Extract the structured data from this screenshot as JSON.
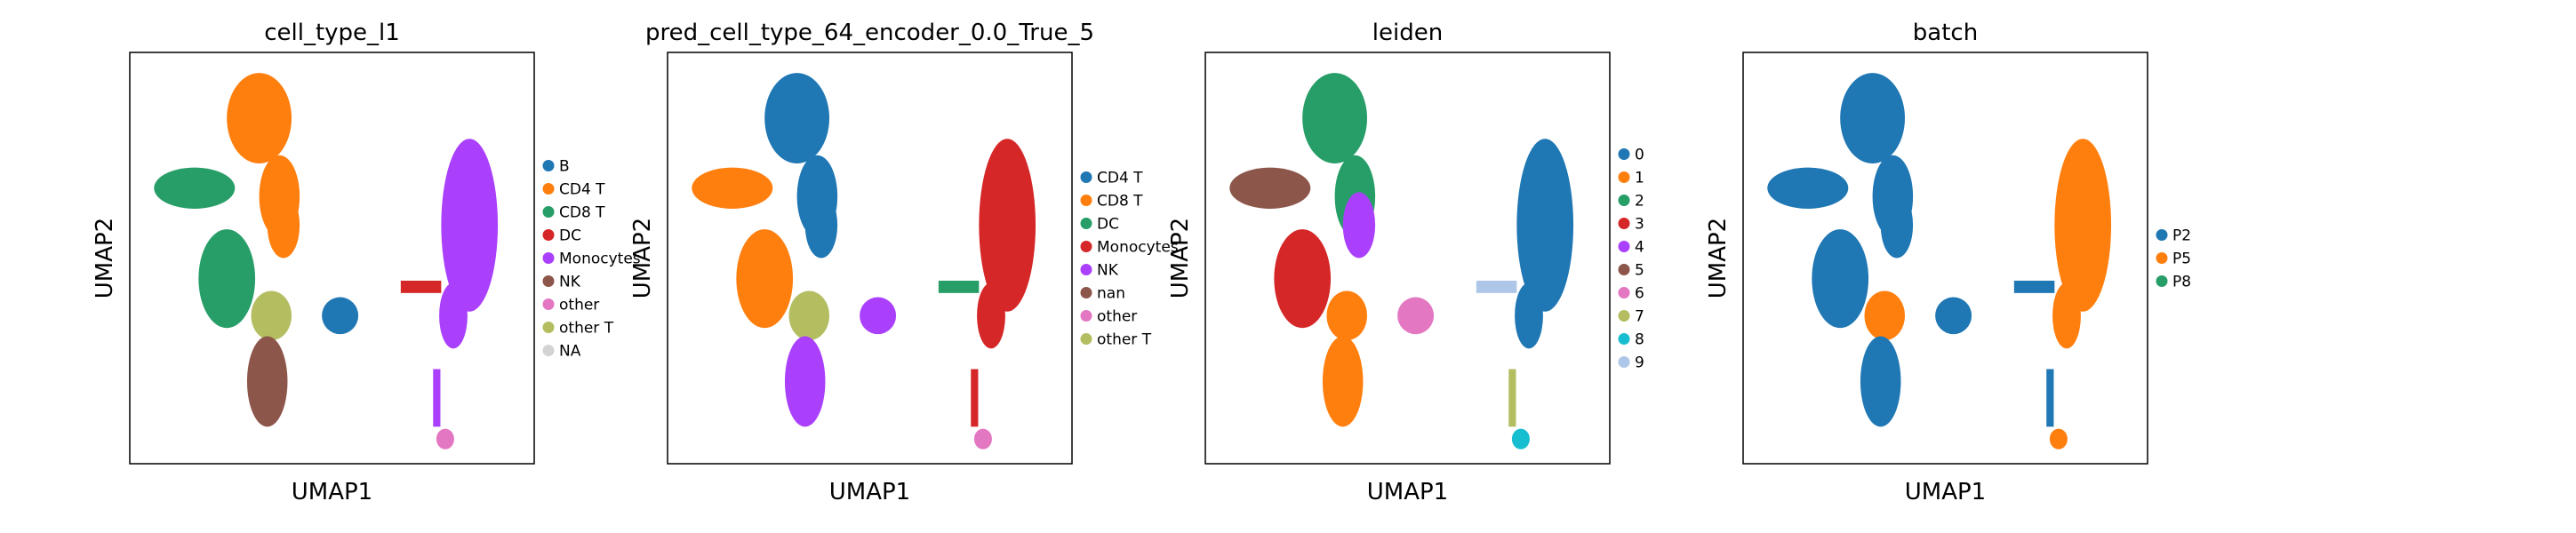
{
  "panels": [
    {
      "title": "cell_type_l1",
      "xlabel": "UMAP1",
      "ylabel": "UMAP2",
      "legend": [
        {
          "label": "B",
          "color": "#1f77b4"
        },
        {
          "label": "CD4 T",
          "color": "#ff7f0e"
        },
        {
          "label": "CD8 T",
          "color": "#279e68"
        },
        {
          "label": "DC",
          "color": "#d62728"
        },
        {
          "label": "Monocytes",
          "color": "#aa40fc"
        },
        {
          "label": "NK",
          "color": "#8c564b"
        },
        {
          "label": "other",
          "color": "#e377c2"
        },
        {
          "label": "other T",
          "color": "#b5bd61"
        },
        {
          "label": "NA",
          "color": "#d3d3d3"
        }
      ],
      "clusters": [
        {
          "region": "top-center",
          "color": "#ff7f0e"
        },
        {
          "region": "left-arm",
          "color": "#279e68"
        },
        {
          "region": "left-lower",
          "color": "#279e68"
        },
        {
          "region": "center-mid",
          "color": "#ff7f0e"
        },
        {
          "region": "center-lower",
          "color": "#b5bd61"
        },
        {
          "region": "bottom-blob",
          "color": "#8c564b"
        },
        {
          "region": "small-blob",
          "color": "#1f77b4"
        },
        {
          "region": "right-large",
          "color": "#aa40fc"
        },
        {
          "region": "right-tail",
          "color": "#aa40fc"
        },
        {
          "region": "right-stream",
          "color": "#d62728"
        },
        {
          "region": "right-bottom-dot",
          "color": "#e377c2"
        }
      ]
    },
    {
      "title": "pred_cell_type_64_encoder_0.0_True_5",
      "xlabel": "UMAP1",
      "ylabel": "UMAP2",
      "legend": [
        {
          "label": "CD4 T",
          "color": "#1f77b4"
        },
        {
          "label": "CD8 T",
          "color": "#ff7f0e"
        },
        {
          "label": "DC",
          "color": "#279e68"
        },
        {
          "label": "Monocytes",
          "color": "#d62728"
        },
        {
          "label": "NK",
          "color": "#aa40fc"
        },
        {
          "label": "nan",
          "color": "#8c564b"
        },
        {
          "label": "other",
          "color": "#e377c2"
        },
        {
          "label": "other T",
          "color": "#b5bd61"
        }
      ],
      "clusters": [
        {
          "region": "top-center",
          "color": "#1f77b4"
        },
        {
          "region": "left-arm",
          "color": "#ff7f0e"
        },
        {
          "region": "left-lower",
          "color": "#ff7f0e"
        },
        {
          "region": "center-mid",
          "color": "#1f77b4"
        },
        {
          "region": "center-lower",
          "color": "#b5bd61"
        },
        {
          "region": "bottom-blob",
          "color": "#aa40fc"
        },
        {
          "region": "small-blob",
          "color": "#aa40fc"
        },
        {
          "region": "right-large",
          "color": "#d62728"
        },
        {
          "region": "right-tail",
          "color": "#d62728"
        },
        {
          "region": "right-stream",
          "color": "#279e68"
        },
        {
          "region": "right-bottom-dot",
          "color": "#e377c2"
        }
      ]
    },
    {
      "title": "leiden",
      "xlabel": "UMAP1",
      "ylabel": "UMAP2",
      "legend": [
        {
          "label": "0",
          "color": "#1f77b4"
        },
        {
          "label": "1",
          "color": "#ff7f0e"
        },
        {
          "label": "2",
          "color": "#279e68"
        },
        {
          "label": "3",
          "color": "#d62728"
        },
        {
          "label": "4",
          "color": "#aa40fc"
        },
        {
          "label": "5",
          "color": "#8c564b"
        },
        {
          "label": "6",
          "color": "#e377c2"
        },
        {
          "label": "7",
          "color": "#b5bd61"
        },
        {
          "label": "8",
          "color": "#17becf"
        },
        {
          "label": "9",
          "color": "#aec7e8"
        }
      ],
      "clusters": [
        {
          "region": "top-center",
          "color": "#279e68"
        },
        {
          "region": "left-arm",
          "color": "#8c564b"
        },
        {
          "region": "left-lower",
          "color": "#d62728"
        },
        {
          "region": "center-mid",
          "color": "#aa40fc"
        },
        {
          "region": "center-lower",
          "color": "#ff7f0e"
        },
        {
          "region": "bottom-blob",
          "color": "#ff7f0e"
        },
        {
          "region": "small-blob",
          "color": "#e377c2"
        },
        {
          "region": "right-large",
          "color": "#1f77b4"
        },
        {
          "region": "right-tail",
          "color": "#b5bd61"
        },
        {
          "region": "right-stream",
          "color": "#aec7e8"
        },
        {
          "region": "right-bottom-dot",
          "color": "#17becf"
        }
      ]
    },
    {
      "title": "batch",
      "xlabel": "UMAP1",
      "ylabel": "UMAP2",
      "legend": [
        {
          "label": "P2",
          "color": "#1f77b4"
        },
        {
          "label": "P5",
          "color": "#ff7f0e"
        },
        {
          "label": "P8",
          "color": "#279e68"
        }
      ],
      "clusters": [
        {
          "region": "top-center",
          "color": "#1f77b4"
        },
        {
          "region": "left-arm",
          "color": "#1f77b4"
        },
        {
          "region": "left-lower",
          "color": "#1f77b4"
        },
        {
          "region": "center-mid",
          "color": "#1f77b4"
        },
        {
          "region": "center-lower",
          "color": "#ff7f0e"
        },
        {
          "region": "bottom-blob",
          "color": "#1f77b4"
        },
        {
          "region": "small-blob",
          "color": "#1f77b4"
        },
        {
          "region": "right-large",
          "color": "#ff7f0e"
        },
        {
          "region": "right-tail",
          "color": "#1f77b4"
        },
        {
          "region": "right-stream",
          "color": "#1f77b4"
        },
        {
          "region": "right-bottom-dot",
          "color": "#ff7f0e"
        }
      ]
    }
  ],
  "chart_data": [
    {
      "type": "scatter",
      "title": "cell_type_l1",
      "xlabel": "UMAP1",
      "ylabel": "UMAP2",
      "grid": false,
      "legend_placement": "right",
      "series": [
        {
          "name": "B"
        },
        {
          "name": "CD4 T"
        },
        {
          "name": "CD8 T"
        },
        {
          "name": "DC"
        },
        {
          "name": "Monocytes"
        },
        {
          "name": "NK"
        },
        {
          "name": "other"
        },
        {
          "name": "other T"
        },
        {
          "name": "NA"
        }
      ]
    },
    {
      "type": "scatter",
      "title": "pred_cell_type_64_encoder_0.0_True_5",
      "xlabel": "UMAP1",
      "ylabel": "UMAP2",
      "grid": false,
      "legend_placement": "right",
      "series": [
        {
          "name": "CD4 T"
        },
        {
          "name": "CD8 T"
        },
        {
          "name": "DC"
        },
        {
          "name": "Monocytes"
        },
        {
          "name": "NK"
        },
        {
          "name": "nan"
        },
        {
          "name": "other"
        },
        {
          "name": "other T"
        }
      ]
    },
    {
      "type": "scatter",
      "title": "leiden",
      "xlabel": "UMAP1",
      "ylabel": "UMAP2",
      "grid": false,
      "legend_placement": "right",
      "series": [
        {
          "name": "0"
        },
        {
          "name": "1"
        },
        {
          "name": "2"
        },
        {
          "name": "3"
        },
        {
          "name": "4"
        },
        {
          "name": "5"
        },
        {
          "name": "6"
        },
        {
          "name": "7"
        },
        {
          "name": "8"
        },
        {
          "name": "9"
        }
      ]
    },
    {
      "type": "scatter",
      "title": "batch",
      "xlabel": "UMAP1",
      "ylabel": "UMAP2",
      "grid": false,
      "legend_placement": "right",
      "series": [
        {
          "name": "P2"
        },
        {
          "name": "P5"
        },
        {
          "name": "P8"
        }
      ]
    }
  ]
}
